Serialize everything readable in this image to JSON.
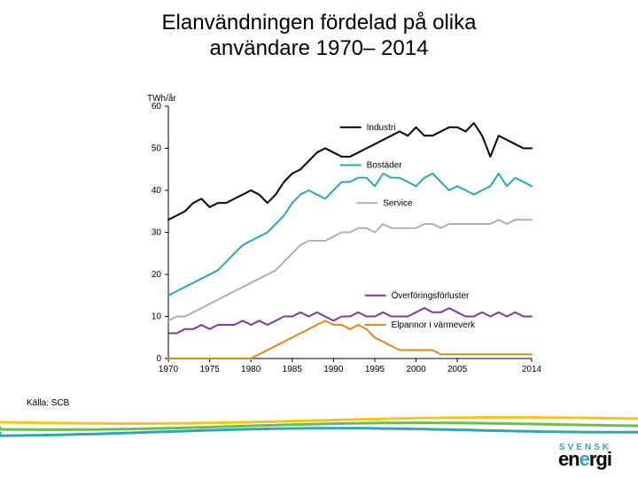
{
  "title_line1": "Elanvändningen fördelad på olika",
  "title_line2": "användare 1970– 2014",
  "source_text": "Källa: SCB",
  "logo": {
    "line1": "SVENSK",
    "line2_pre": "en",
    "line2_dot": "e",
    "line2_post": "rgi"
  },
  "chart": {
    "type": "line",
    "y_axis_label": "TWh/år",
    "background_color": "#ffffff",
    "axis_color": "#000000",
    "tick_font_size": 10,
    "label_font_size": 10,
    "line_width": 2.0,
    "xlim": [
      1970,
      2014
    ],
    "ylim": [
      0,
      60
    ],
    "ytick_step": 10,
    "xticks": [
      1970,
      1975,
      1980,
      1985,
      1990,
      1995,
      2000,
      2005,
      2014
    ],
    "years": [
      1970,
      1971,
      1972,
      1973,
      1974,
      1975,
      1976,
      1977,
      1978,
      1979,
      1980,
      1981,
      1982,
      1983,
      1984,
      1985,
      1986,
      1987,
      1988,
      1989,
      1990,
      1991,
      1992,
      1993,
      1994,
      1995,
      1996,
      1997,
      1998,
      1999,
      2000,
      2001,
      2002,
      2003,
      2004,
      2005,
      2006,
      2007,
      2008,
      2009,
      2010,
      2011,
      2012,
      2013,
      2014
    ],
    "series": [
      {
        "name": "Industri",
        "label": "Industri",
        "color": "#000000",
        "label_x": 1994,
        "label_y": 55,
        "values": [
          33,
          34,
          35,
          37,
          38,
          36,
          37,
          37,
          38,
          39,
          40,
          39,
          37,
          39,
          42,
          44,
          45,
          47,
          49,
          50,
          49,
          48,
          48,
          49,
          50,
          51,
          52,
          53,
          54,
          53,
          55,
          53,
          53,
          54,
          55,
          55,
          54,
          56,
          53,
          48,
          53,
          52,
          51,
          50,
          50
        ]
      },
      {
        "name": "Bostäder",
        "label": "Bostäder",
        "color": "#2aa8b8",
        "label_x": 1994,
        "label_y": 46,
        "values": [
          15,
          16,
          17,
          18,
          19,
          20,
          21,
          23,
          25,
          27,
          28,
          29,
          30,
          32,
          34,
          37,
          39,
          40,
          39,
          38,
          40,
          42,
          42,
          43,
          43,
          41,
          44,
          43,
          43,
          42,
          41,
          43,
          44,
          42,
          40,
          41,
          40,
          39,
          40,
          41,
          44,
          41,
          43,
          42,
          41
        ]
      },
      {
        "name": "Service",
        "label": "Service",
        "color": "#b0b0b0",
        "label_x": 1996,
        "label_y": 37,
        "values": [
          9,
          10,
          10,
          11,
          12,
          13,
          14,
          15,
          16,
          17,
          18,
          19,
          20,
          21,
          23,
          25,
          27,
          28,
          28,
          28,
          29,
          30,
          30,
          31,
          31,
          30,
          32,
          31,
          31,
          31,
          31,
          32,
          32,
          31,
          32,
          32,
          32,
          32,
          32,
          32,
          33,
          32,
          33,
          33,
          33
        ]
      },
      {
        "name": "Överföringsförluster",
        "label": "Överföringsförluster",
        "color": "#7a3f9a",
        "label_x": 1997,
        "label_y": 15,
        "values": [
          6,
          6,
          7,
          7,
          8,
          7,
          8,
          8,
          8,
          9,
          8,
          9,
          8,
          9,
          10,
          10,
          11,
          10,
          11,
          10,
          9,
          10,
          10,
          11,
          10,
          10,
          11,
          10,
          10,
          10,
          11,
          12,
          11,
          11,
          12,
          11,
          10,
          10,
          11,
          10,
          11,
          10,
          11,
          10,
          10
        ]
      },
      {
        "name": "Elpannor i värmeverk",
        "label": "Elpannor i värmeverk",
        "color": "#e08a1a",
        "label_x": 1997,
        "label_y": 8,
        "values": [
          0,
          0,
          0,
          0,
          0,
          0,
          0,
          0,
          0,
          0,
          0,
          1,
          2,
          3,
          4,
          5,
          6,
          7,
          8,
          9,
          8,
          8,
          7,
          8,
          7,
          5,
          4,
          3,
          2,
          2,
          2,
          2,
          2,
          1,
          1,
          1,
          1,
          1,
          1,
          1,
          1,
          1,
          1,
          1,
          1
        ]
      }
    ]
  },
  "footer_bands": [
    {
      "color": "#f5c518",
      "y": 0,
      "amp": 6,
      "width": 3,
      "phase": 0.0
    },
    {
      "color": "#6abf4b",
      "y": 6,
      "amp": 7,
      "width": 3,
      "phase": 0.8
    },
    {
      "color": "#2aa8b8",
      "y": 12,
      "amp": 8,
      "width": 3,
      "phase": 1.6
    }
  ]
}
